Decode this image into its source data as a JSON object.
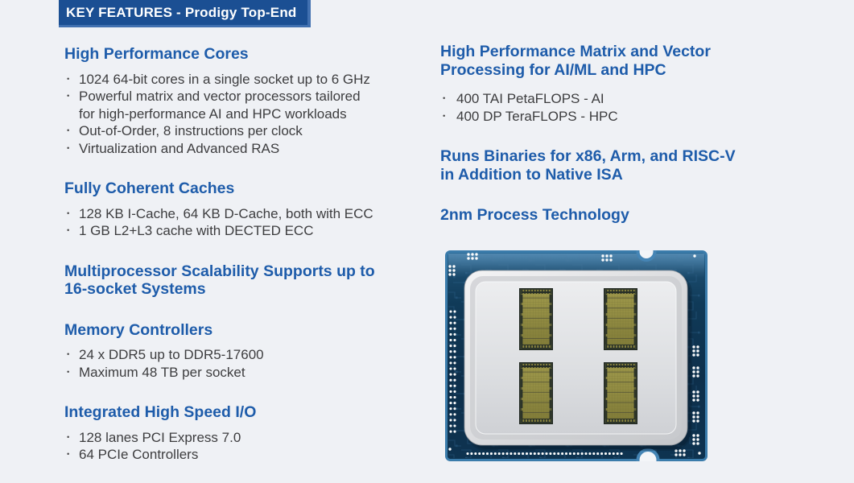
{
  "banner": {
    "text": "KEY FEATURES - Prodigy Top-End"
  },
  "colors": {
    "background": "#eff1f5",
    "banner_bg": "#1b4f93",
    "banner_edge": "#4170b0",
    "heading": "#1e5caa",
    "body_text": "#3d3d3f",
    "pcb_navy": "#0d2f4b",
    "pcb_border_blue": "#3b7cab",
    "pcb_trace_blue": "#2c6089",
    "heat_spreader_gray": "#d9dadd",
    "die_olive": "#8f8a41"
  },
  "left_sections": [
    {
      "heading": "High Performance Cores",
      "bullets": [
        "1024 64-bit cores in a single socket up to 6 GHz",
        [
          "Powerful matrix and vector processors tailored",
          "for high-performance AI and HPC workloads"
        ],
        "Out-of-Order, 8 instructions per clock",
        "Virtualization and Advanced RAS"
      ]
    },
    {
      "heading": "Fully Coherent Caches",
      "bullets": [
        "128 KB I-Cache, 64 KB D-Cache, both with ECC",
        "1 GB L2+L3 cache with DECTED ECC"
      ]
    },
    {
      "heading": [
        "Multiprocessor Scalability Supports up to",
        "16-socket Systems"
      ],
      "bullets": []
    },
    {
      "heading": "Memory Controllers",
      "bullets": [
        "24 x DDR5 up to DDR5-17600",
        "Maximum 48 TB per socket"
      ]
    },
    {
      "heading": "Integrated High Speed I/O",
      "bullets": [
        "128 lanes PCI Express 7.0",
        "64 PCIe Controllers"
      ]
    }
  ],
  "right_sections": [
    {
      "heading": [
        "High Performance Matrix and Vector",
        "Processing for AI/ML and HPC"
      ],
      "bullets": [
        "400 TAI PetaFLOPS - AI",
        "400 DP TeraFLOPS - HPC"
      ]
    },
    {
      "heading": [
        "Runs Binaries for x86, Arm, and RISC-V",
        "in Addition to Native ISA"
      ],
      "bullets": []
    },
    {
      "heading": "2nm Process Technology",
      "bullets": []
    }
  ],
  "chip_image": {
    "alt": "Prodigy processor package render with four dies"
  }
}
